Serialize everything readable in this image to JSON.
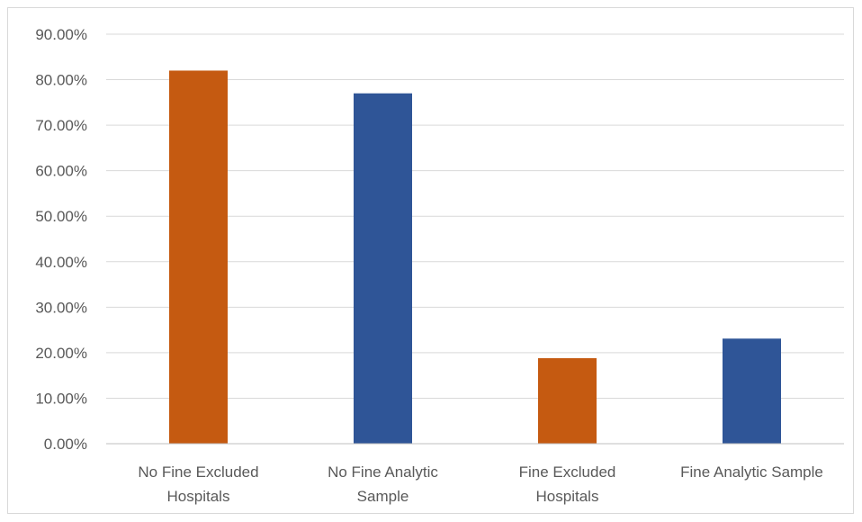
{
  "chart_data": {
    "type": "bar",
    "title": "",
    "xlabel": "",
    "ylabel": "",
    "ylim": [
      0,
      90
    ],
    "y_ticks": [
      "0.00%",
      "10.00%",
      "20.00%",
      "30.00%",
      "40.00%",
      "50.00%",
      "60.00%",
      "70.00%",
      "80.00%",
      "90.00%"
    ],
    "grid": true,
    "categories": [
      [
        "No Fine Excluded",
        "Hospitals"
      ],
      [
        "No Fine Analytic",
        "Sample"
      ],
      [
        "Fine Excluded",
        "Hospitals"
      ],
      [
        "Fine Analytic Sample"
      ]
    ],
    "values": [
      82.0,
      77.0,
      18.8,
      23.1
    ],
    "bar_colors": [
      "#c55a11",
      "#2f5597",
      "#c55a11",
      "#2f5597"
    ],
    "gridline_color": "#d9d9d9",
    "axis_color": "#bfbfbf"
  }
}
